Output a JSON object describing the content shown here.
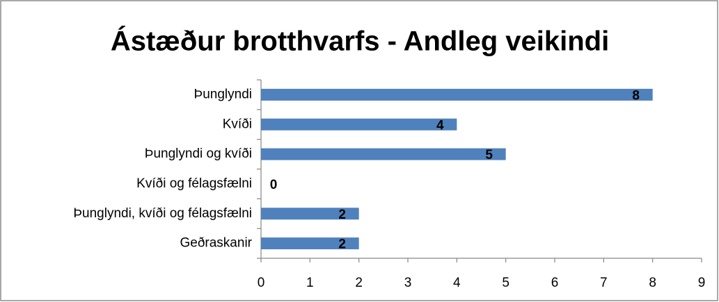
{
  "chart_data": {
    "type": "bar",
    "orientation": "horizontal",
    "title": "Ástæður brotthvarfs - Andleg veikindi",
    "categories": [
      "Þunglyndi",
      "Kvíði",
      "Þunglyndi og kvíði",
      "Kvíði og félagsfælni",
      "Þunglyndi, kvíði og félagsfælni",
      "Geðraskanir"
    ],
    "values": [
      8,
      4,
      5,
      0,
      2,
      2
    ],
    "color": "#4f81bd",
    "xlim": [
      0,
      9
    ],
    "xticks": [
      0,
      1,
      2,
      3,
      4,
      5,
      6,
      7,
      8,
      9
    ],
    "grid": false,
    "data_labels": true
  }
}
